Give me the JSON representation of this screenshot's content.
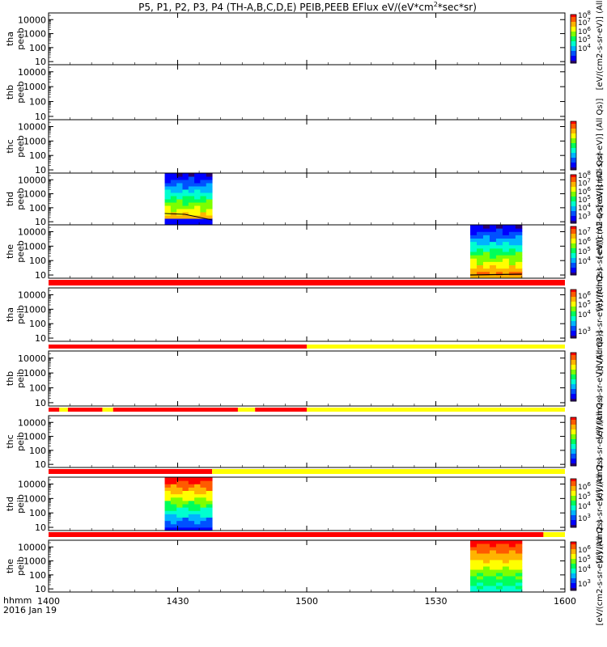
{
  "title": "P5, P1, P2, P3, P4 (TH-A,B,C,D,E) PEIB,PEEB EFlux eV/(eV*cm^2*sec*sr)",
  "title_parts": {
    "pre": "P5, P1, P2, P3, P4 (TH-A,B,C,D,E) PEIB,PEEB EFlux eV/(eV*cm",
    "sup1": "2",
    "mid": "*sec*sr)"
  },
  "time_axis": {
    "label_line1": "hhmm",
    "label_line2": "2016 Jan 19",
    "ticks": [
      "1400",
      "1430",
      "1500",
      "1530",
      "1600"
    ],
    "range_min": [
      0,
      120
    ]
  },
  "colors": {
    "red": "#ff0000",
    "yellow": "#ffff00",
    "orange": "#ff5a00",
    "black": "#000000"
  },
  "chart_data": {
    "type": "heatmap",
    "yscale": "log",
    "yticks": [
      "10",
      "100",
      "1000",
      "10000"
    ],
    "panels": [
      {
        "label1": "tha",
        "label2": "peeb",
        "data": [],
        "colorbar": {
          "label": "[eV/(cm2-s-sr-eV)] (All",
          "ticks": [
            {
              "exp": "7",
              "t": 0.15
            },
            {
              "exp": "6",
              "t": 0.33
            },
            {
              "exp": "5",
              "t": 0.5
            },
            {
              "exp": "4",
              "t": 0.68
            },
            {
              "exp": "8",
              "t": 0.0
            }
          ]
        }
      },
      {
        "label1": "thb",
        "label2": "peeb",
        "data": []
      },
      {
        "label1": "thc",
        "label2": "peeb",
        "data": [],
        "colorbar": {
          "label": "[eV/(cm2-s-sr-eV)] (All Qs)]"
        }
      },
      {
        "label1": "thd",
        "label2": "peeb",
        "data": [
          {
            "t_start_min": 27,
            "t_end_min": 38
          }
        ],
        "colorbar": {
          "label": "[eV/(cm2-s-sr-eV)] (All Qs)",
          "ticks": [
            {
              "exp": "8",
              "t": 0.0
            },
            {
              "exp": "7",
              "t": 0.16
            },
            {
              "exp": "6",
              "t": 0.33
            },
            {
              "exp": "5",
              "t": 0.5
            },
            {
              "exp": "4",
              "t": 0.67
            },
            {
              "exp": "3",
              "t": 0.84
            }
          ]
        }
      },
      {
        "label1": "the",
        "label2": "peeb",
        "data": [
          {
            "t_start_min": 98,
            "t_end_min": 110
          }
        ],
        "colorbar": {
          "label": "[eV/(cm2-s-sr-eV)] (All Qs)",
          "ticks": [
            {
              "exp": "7",
              "t": 0.1
            },
            {
              "exp": "6",
              "t": 0.3
            },
            {
              "exp": "5",
              "t": 0.5
            },
            {
              "exp": "4",
              "t": 0.7
            }
          ]
        }
      },
      {
        "label1": "tha",
        "label2": "peib",
        "data": [],
        "status_bar": [
          {
            "from": 0,
            "to": 120,
            "color": "red"
          }
        ],
        "colorbar": {
          "label": "[eV/(cm2-s-sr-eV)] (All Qs)",
          "ticks": [
            {
              "exp": "6",
              "t": 0.12
            },
            {
              "exp": "5",
              "t": 0.3
            },
            {
              "exp": "4",
              "t": 0.5
            },
            {
              "exp": "3",
              "t": 0.85
            }
          ]
        }
      },
      {
        "label1": "thb",
        "label2": "peib",
        "data": [],
        "status_bar": [
          {
            "from": 0,
            "to": 60,
            "color": "red"
          },
          {
            "from": 60,
            "to": 120,
            "color": "yellow"
          }
        ],
        "colorbar": {
          "label": "[eV/(cm2-s-sr-eV)] (All Qs)]"
        }
      },
      {
        "label1": "thc",
        "label2": "peib",
        "data": [],
        "status_bar": [
          {
            "from": 0,
            "to": 2.5,
            "color": "red"
          },
          {
            "from": 2.5,
            "to": 4.5,
            "color": "yellow"
          },
          {
            "from": 4.5,
            "to": 12.5,
            "color": "red"
          },
          {
            "from": 12.5,
            "to": 15,
            "color": "yellow"
          },
          {
            "from": 15,
            "to": 44,
            "color": "red"
          },
          {
            "from": 44,
            "to": 48,
            "color": "yellow"
          },
          {
            "from": 48,
            "to": 60,
            "color": "red"
          },
          {
            "from": 60,
            "to": 120,
            "color": "yellow"
          }
        ],
        "colorbar": {
          "label": "[eV/(cm2-s-sr-eV)] (All Qs)"
        }
      },
      {
        "label1": "thd",
        "label2": "peib",
        "data": [
          {
            "t_start_min": 27,
            "t_end_min": 38
          }
        ],
        "status_bar": [
          {
            "from": 0,
            "to": 38,
            "color": "red"
          },
          {
            "from": 38,
            "to": 120,
            "color": "yellow"
          }
        ],
        "colorbar": {
          "label": "[eV/(cm2-s-sr-eV)] (All Qs)",
          "ticks": [
            {
              "exp": "6",
              "t": 0.15
            },
            {
              "exp": "5",
              "t": 0.35
            },
            {
              "exp": "4",
              "t": 0.55
            },
            {
              "exp": "3",
              "t": 0.8
            }
          ]
        }
      },
      {
        "label1": "the",
        "label2": "peib",
        "data": [
          {
            "t_start_min": 98,
            "t_end_min": 110
          }
        ],
        "status_bar": [
          {
            "from": 0,
            "to": 115,
            "color": "red"
          },
          {
            "from": 115,
            "to": 120,
            "color": "yellow"
          }
        ],
        "colorbar": {
          "label": "[eV/(cm2-s-sr-eV)] (All Qs)",
          "ticks": [
            {
              "exp": "6",
              "t": 0.15
            },
            {
              "exp": "5",
              "t": 0.35
            },
            {
              "exp": "4",
              "t": 0.55
            },
            {
              "exp": "3",
              "t": 0.85
            }
          ]
        }
      }
    ]
  }
}
